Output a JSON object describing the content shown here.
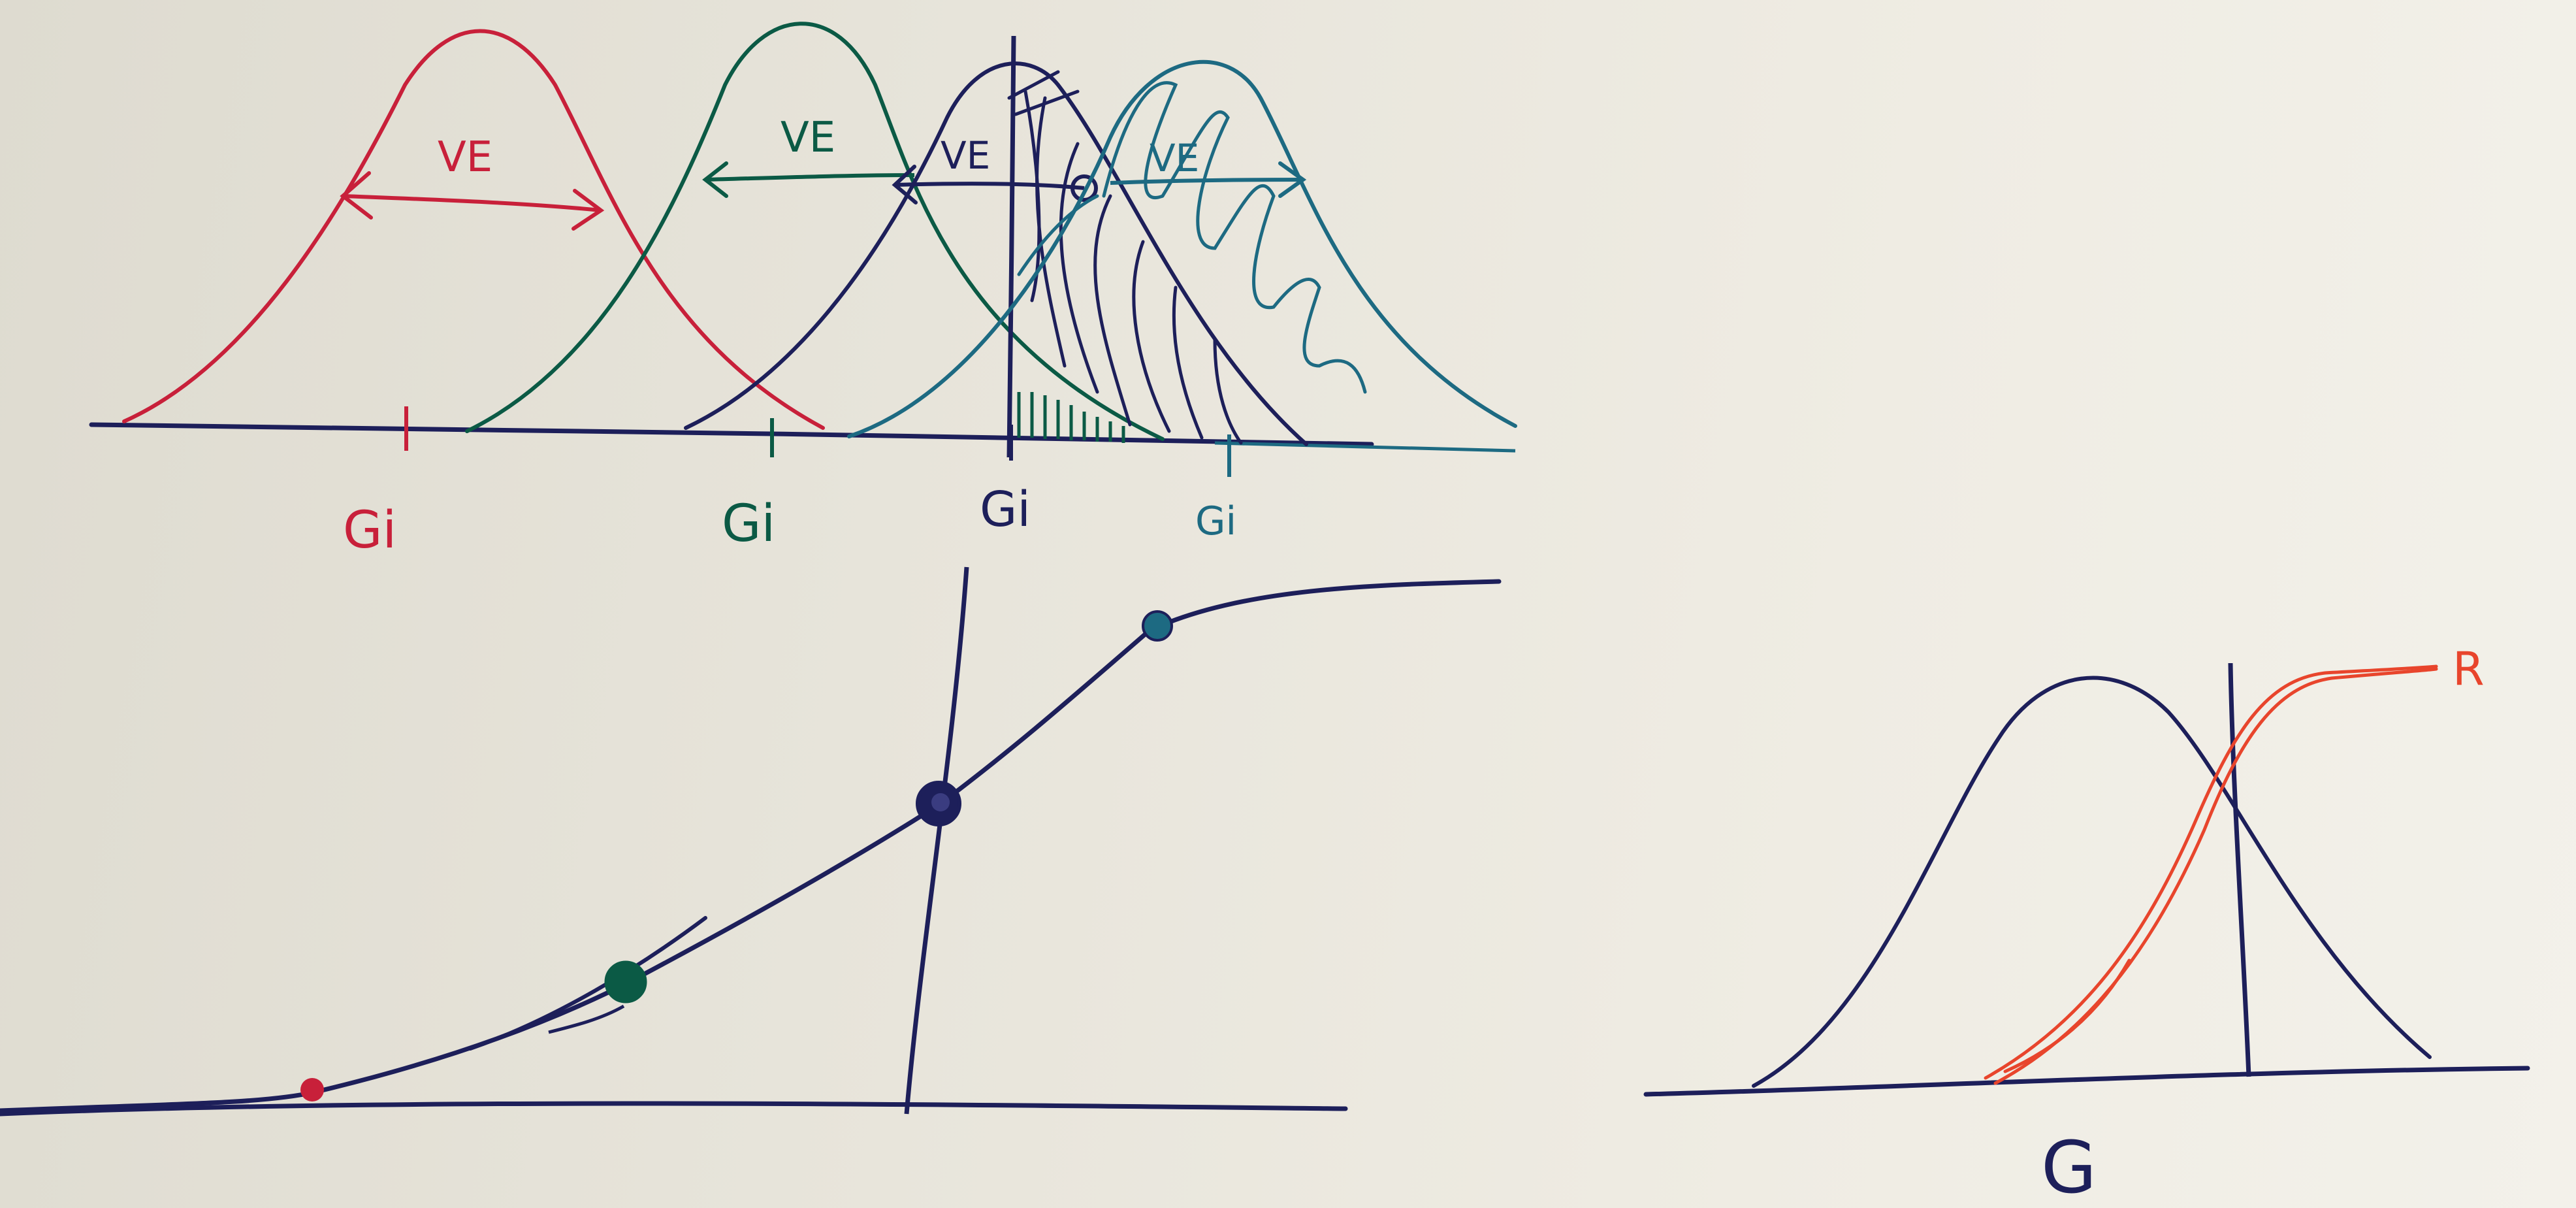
{
  "colors": {
    "red": "#c8203a",
    "green": "#0b5a45",
    "navy": "#1d1f5a",
    "teal": "#1d6a82",
    "orange_red": "#e8452c",
    "paper": "#e8e5db"
  },
  "top_diagram": {
    "curves": [
      {
        "color": "red",
        "width_label": "VE",
        "axis_label": "Gi"
      },
      {
        "color": "green",
        "width_label": "VE",
        "axis_label": "Gi"
      },
      {
        "color": "navy",
        "width_label": "VE",
        "axis_label": "Gi"
      },
      {
        "color": "teal",
        "width_label": "VE",
        "axis_label": "Gi"
      }
    ]
  },
  "bottom_left_diagram": {
    "curve": "sigmoid",
    "points": [
      {
        "color": "red"
      },
      {
        "color": "green"
      },
      {
        "color": "navy"
      },
      {
        "color": "teal"
      }
    ]
  },
  "right_diagram": {
    "curve_label": "R",
    "axis_label": "G"
  }
}
